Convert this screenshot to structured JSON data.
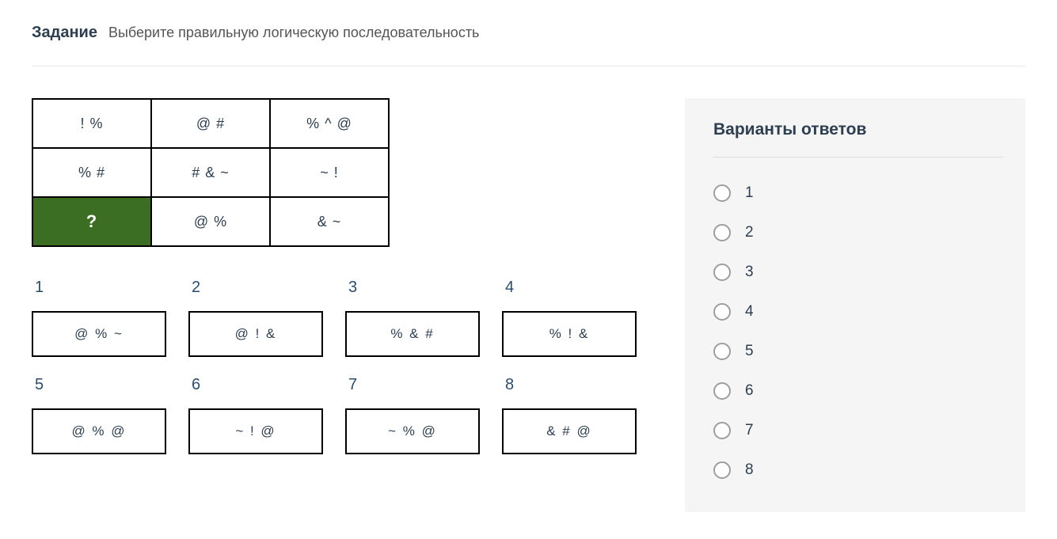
{
  "header": {
    "title": "Задание",
    "subtitle": "Выберите правильную логическую последовательность"
  },
  "grid": {
    "rows": [
      [
        "! %",
        "@ #",
        "% ^ @"
      ],
      [
        "% #",
        "# & ~",
        "~ !"
      ],
      [
        "?",
        "@ %",
        "& ~"
      ]
    ],
    "highlight": {
      "row": 2,
      "col": 0
    },
    "cell_bg": "#ffffff",
    "highlight_bg": "#3b6e22",
    "highlight_fg": "#ffffff",
    "border_color": "#000000"
  },
  "options": [
    {
      "n": "1",
      "text": "@ % ~"
    },
    {
      "n": "2",
      "text": "@ ! &"
    },
    {
      "n": "3",
      "text": "% & #"
    },
    {
      "n": "4",
      "text": "% ! &"
    },
    {
      "n": "5",
      "text": "@ % @"
    },
    {
      "n": "6",
      "text": "~ ! @"
    },
    {
      "n": "7",
      "text": "~ % @"
    },
    {
      "n": "8",
      "text": "& # @"
    }
  ],
  "answers": {
    "title": "Варианты ответов",
    "items": [
      "1",
      "2",
      "3",
      "4",
      "5",
      "6",
      "7",
      "8"
    ],
    "panel_bg": "#f5f5f5",
    "radio_border": "#9e9e9e"
  },
  "colors": {
    "text": "#2c3e50",
    "number": "#2a4d6e",
    "divider": "#e8e8e8"
  }
}
